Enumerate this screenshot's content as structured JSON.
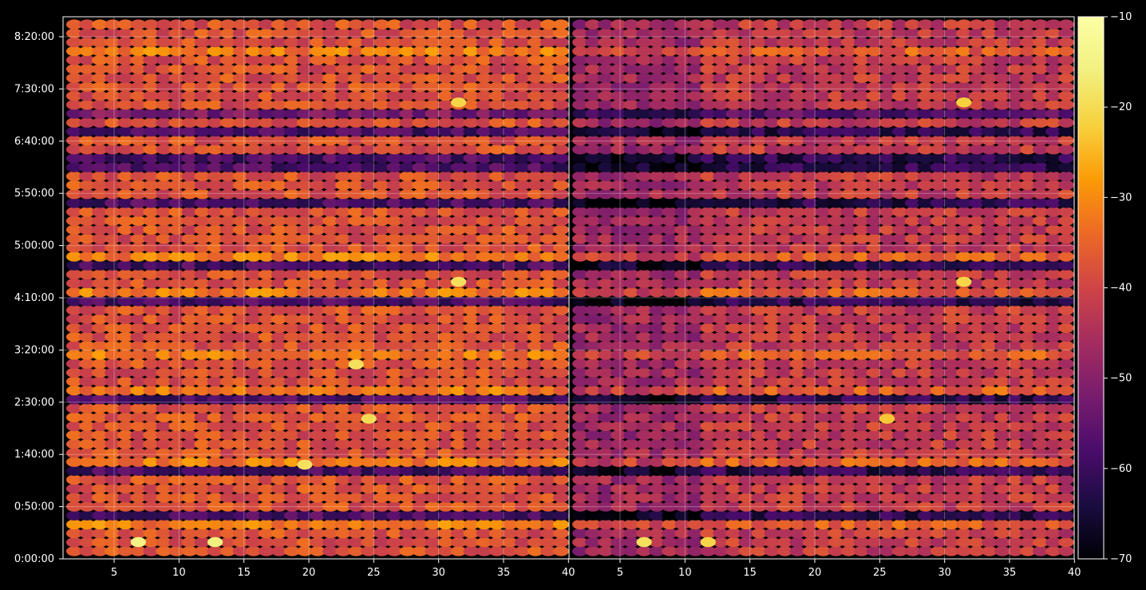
{
  "chart_data": {
    "type": "heatmap",
    "title": "",
    "xlabel": "",
    "ylabel": "",
    "panels": [
      {
        "x_ticks": [
          5,
          10,
          15,
          20,
          25,
          30,
          35,
          40
        ],
        "xlim": [
          1,
          40
        ]
      },
      {
        "x_ticks": [
          5,
          10,
          15,
          20,
          25,
          30,
          35,
          40
        ],
        "xlim": [
          1,
          40
        ]
      }
    ],
    "y_axis": {
      "tick_labels": [
        "0:00:00",
        "0:50:00",
        "1:40:00",
        "2:30:00",
        "3:20:00",
        "4:10:00",
        "5:00:00",
        "5:50:00",
        "6:40:00",
        "7:30:00",
        "8:20:00"
      ],
      "tick_seconds": [
        0,
        3000,
        6000,
        9000,
        12000,
        15000,
        18000,
        21000,
        24000,
        27000,
        30000
      ],
      "range_seconds": [
        0,
        31500
      ]
    },
    "colorbar": {
      "colormap": "inferno",
      "range": [
        -70,
        -10
      ],
      "tick_values": [
        -70,
        -60,
        -50,
        -40,
        -30,
        -20,
        -10
      ],
      "tick_labels": [
        "−70",
        "−60",
        "−50",
        "−40",
        "−30",
        "−20",
        "−10"
      ]
    },
    "grid": true,
    "grid_color": "#ffffff",
    "background": "#000000",
    "dark_bands_seconds": [
      2430,
      5000,
      9000,
      15000,
      17250,
      20650,
      22650,
      23500,
      24700,
      25900
    ],
    "bright_bands_seconds": [
      1800,
      5350,
      9750,
      11700,
      15350,
      17400,
      26050,
      26250,
      29900
    ],
    "hotspots": [
      {
        "panel": 0,
        "x": 6,
        "t": 800,
        "value": -15
      },
      {
        "panel": 0,
        "x": 12,
        "t": 800,
        "value": -16
      },
      {
        "panel": 0,
        "x": 19,
        "t": 5350,
        "value": -19
      },
      {
        "panel": 0,
        "x": 23,
        "t": 11250,
        "value": -19
      },
      {
        "panel": 0,
        "x": 24,
        "t": 8050,
        "value": -20
      },
      {
        "panel": 0,
        "x": 31,
        "t": 16100,
        "value": -19
      },
      {
        "panel": 0,
        "x": 31,
        "t": 26650,
        "value": -21
      },
      {
        "panel": 1,
        "x": 6,
        "t": 800,
        "value": -19
      },
      {
        "panel": 1,
        "x": 11,
        "t": 800,
        "value": -21
      },
      {
        "panel": 1,
        "x": 25,
        "t": 8050,
        "value": -23
      },
      {
        "panel": 1,
        "x": 31,
        "t": 16100,
        "value": -21
      },
      {
        "panel": 1,
        "x": 31,
        "t": 26650,
        "value": -22
      }
    ]
  }
}
